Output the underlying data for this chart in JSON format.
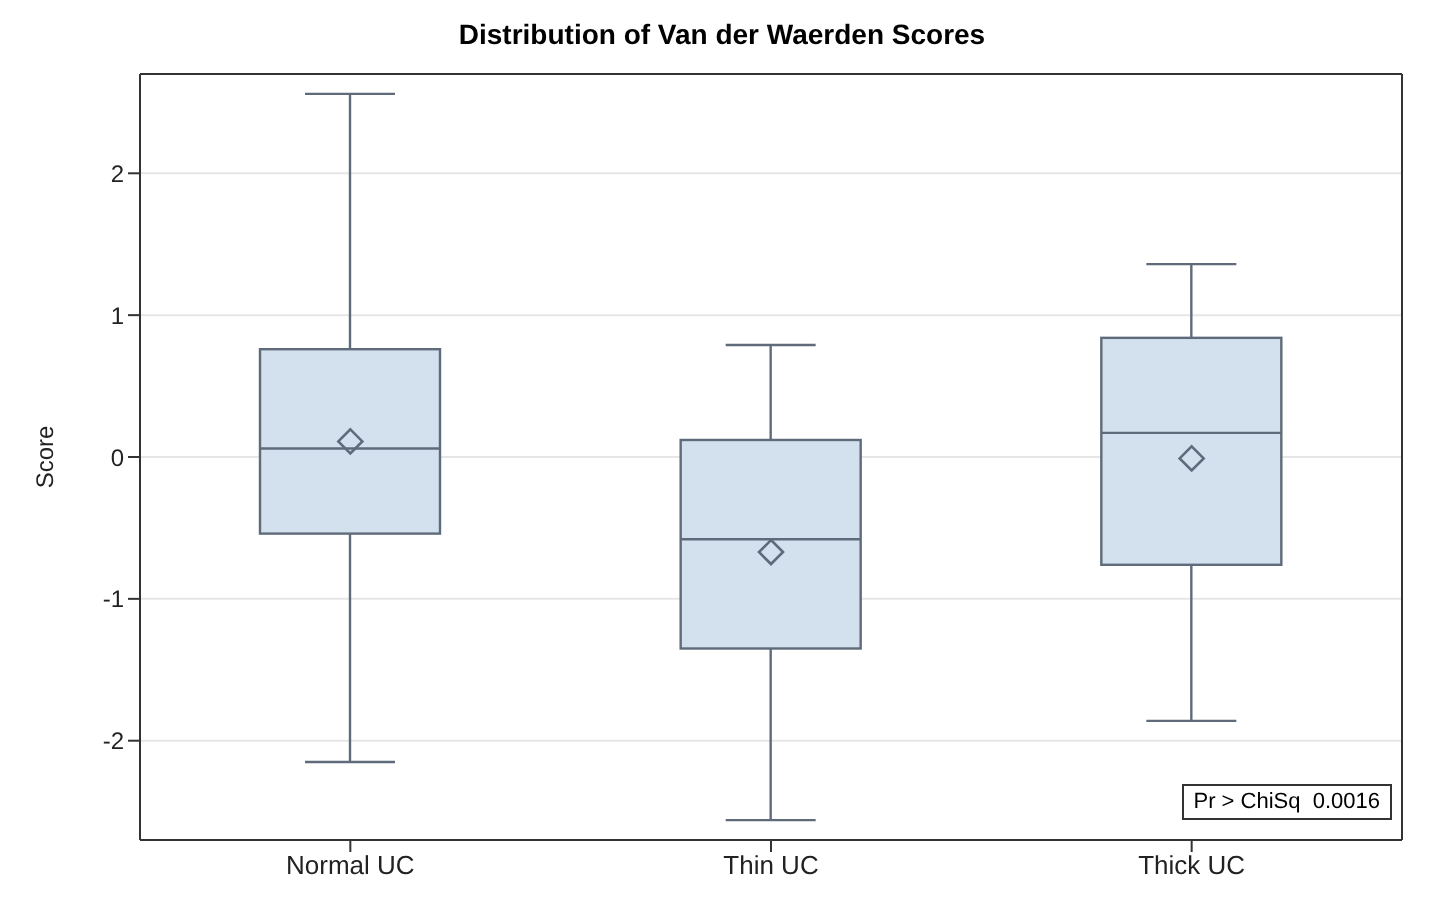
{
  "chart_data": {
    "type": "box",
    "title": "Distribution of Van der Waerden Scores",
    "ylabel": "Score",
    "categories": [
      "Normal UC",
      "Thin UC",
      "Thick UC"
    ],
    "boxes": [
      {
        "low": -2.15,
        "q1": -0.54,
        "median": 0.06,
        "q3": 0.76,
        "high": 2.56,
        "mean": 0.11
      },
      {
        "low": -2.56,
        "q1": -1.35,
        "median": -0.58,
        "q3": 0.12,
        "high": 0.79,
        "mean": -0.67
      },
      {
        "low": -1.86,
        "q1": -0.76,
        "median": 0.17,
        "q3": 0.84,
        "high": 1.36,
        "mean": -0.01
      }
    ],
    "color": "#d3e0ee",
    "ylim": [
      -2.7,
      2.7
    ],
    "yticks": [
      -2,
      -1,
      0,
      1,
      2
    ],
    "grid": "y",
    "marker": "diamond",
    "annotations": [
      "Pr > ChiSq  0.0016"
    ]
  }
}
